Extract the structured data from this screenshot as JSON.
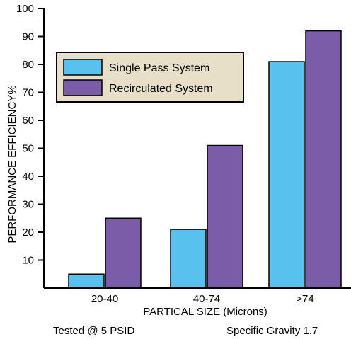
{
  "chart_data": {
    "type": "bar",
    "title": "",
    "xlabel": "PARTICAL SIZE (Microns)",
    "ylabel": "PERFORMANCE EFFICIENCY%",
    "ylim": [
      0,
      100
    ],
    "yticks": [
      10,
      20,
      30,
      40,
      50,
      60,
      70,
      80,
      90,
      100
    ],
    "grid": false,
    "legend_position": "top-left",
    "categories": [
      "20-40",
      "40-74",
      ">74"
    ],
    "series": [
      {
        "name": "Single Pass System",
        "values": [
          5,
          21,
          81
        ],
        "color": "#58c1ee"
      },
      {
        "name": "Recirculated System",
        "values": [
          25,
          51,
          92
        ],
        "color": "#7b5ca8"
      }
    ],
    "footnotes": [
      "Tested @ 5 PSID",
      "Specific Gravity 1.7"
    ]
  },
  "colors": {
    "legend_background": "#e8dfc8",
    "axis": "#000000"
  }
}
